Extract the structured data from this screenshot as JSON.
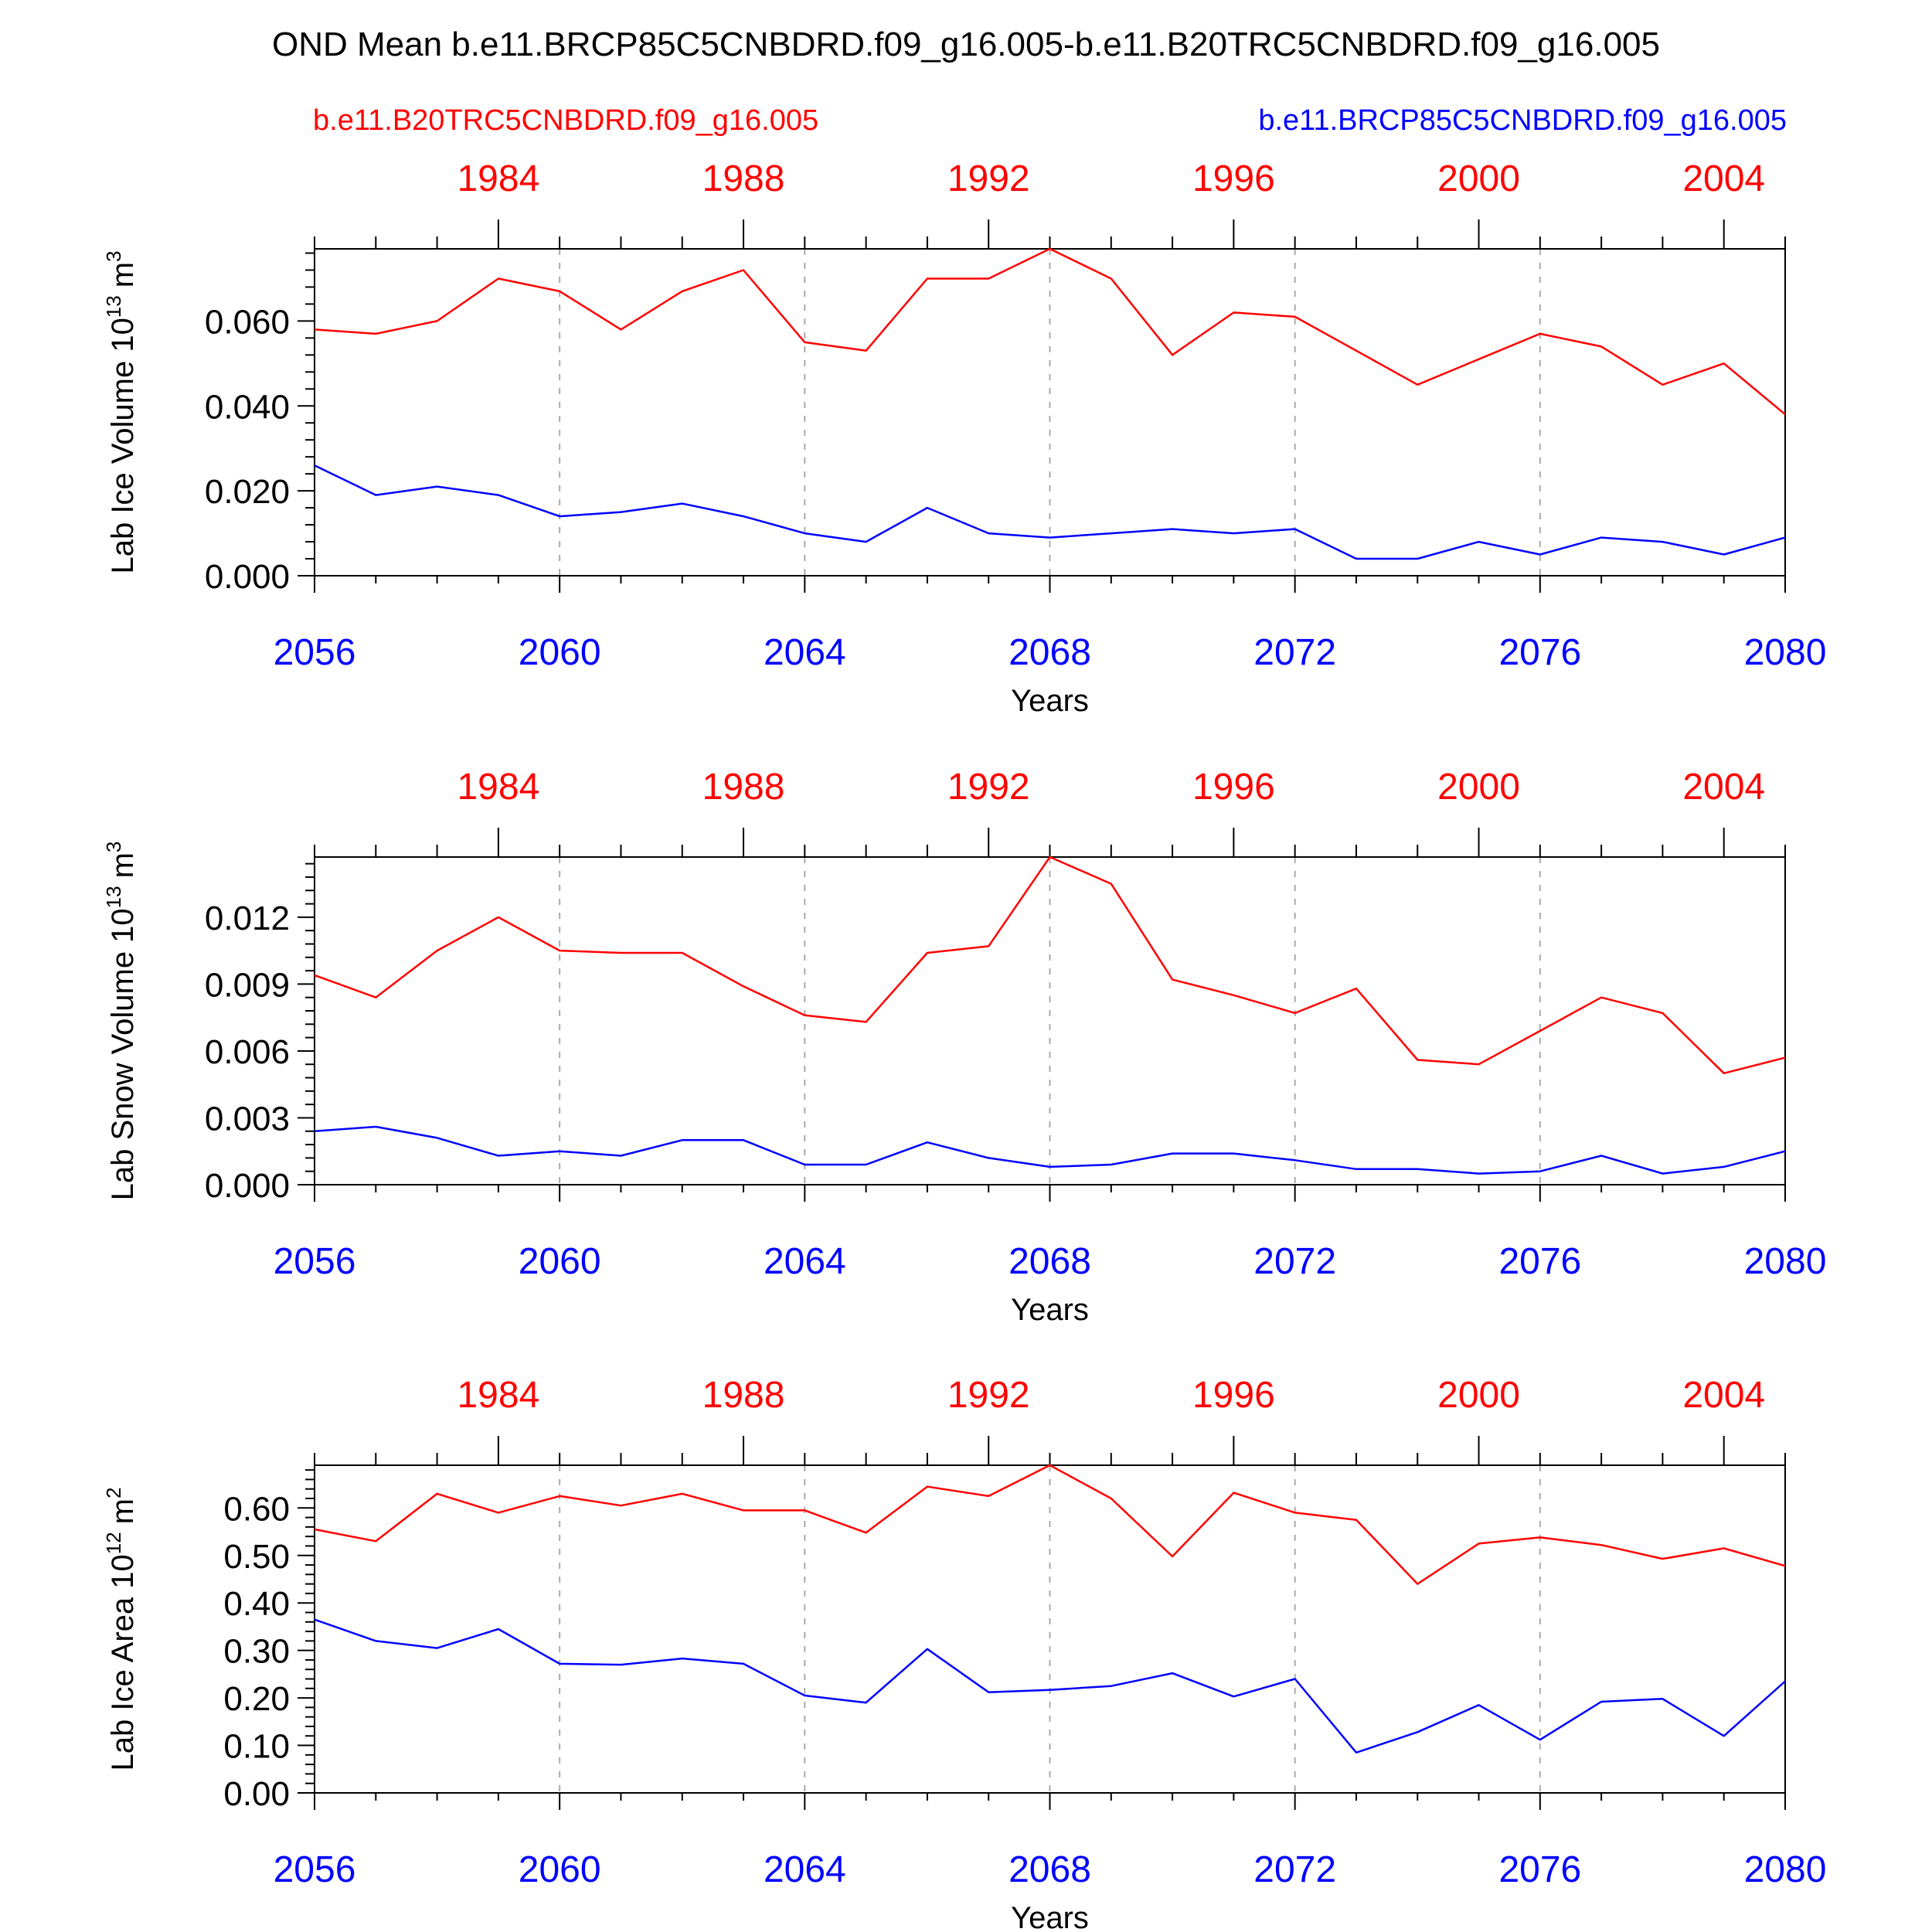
{
  "title": "OND Mean b.e11.BRCP85C5CNBDRD.f09_g16.005-b.e11.B20TRC5CNBDRD.f09_g16.005",
  "legend": {
    "red_label": "b.e11.B20TRC5CNBDRD.f09_g16.005",
    "blue_label": "b.e11.BRCP85C5CNBDRD.f09_g16.005",
    "red_color": "#ff0000",
    "blue_color": "#0000ff"
  },
  "chart_data": [
    {
      "type": "line",
      "ylabel_main": "Lab Ice Volume 10",
      "ylabel_exp": "13",
      "ylabel_unit": "m",
      "ylabel_unit_exp": "3",
      "xlabel": "Years",
      "ylim": [
        0,
        0.077
      ],
      "yticks": [
        0.0,
        0.02,
        0.04,
        0.06
      ],
      "ytick_labels": [
        "0.000",
        "0.020",
        "0.040",
        "0.060"
      ],
      "bottom_axis": {
        "range": [
          2056,
          2080
        ],
        "ticks": [
          2056,
          2060,
          2064,
          2068,
          2072,
          2076,
          2080
        ],
        "tick_labels": [
          "2056",
          "2060",
          "2064",
          "2068",
          "2072",
          "2076",
          "2080"
        ]
      },
      "top_axis": {
        "range": [
          1981,
          2005
        ],
        "ticks": [
          1984,
          1988,
          1992,
          1996,
          2000,
          2004
        ],
        "tick_labels": [
          "1984",
          "1988",
          "1992",
          "1996",
          "2000",
          "2004"
        ]
      },
      "x": [
        2056,
        2057,
        2058,
        2059,
        2060,
        2061,
        2062,
        2063,
        2064,
        2065,
        2066,
        2067,
        2068,
        2069,
        2070,
        2071,
        2072,
        2073,
        2074,
        2075,
        2076,
        2077,
        2078,
        2079,
        2080
      ],
      "series": [
        {
          "name": "b.e11.B20TRC5CNBDRD.f09_g16.005",
          "color": "red",
          "values": [
            0.058,
            0.057,
            0.06,
            0.07,
            0.067,
            0.058,
            0.067,
            0.072,
            0.055,
            0.053,
            0.07,
            0.07,
            0.077,
            0.07,
            0.052,
            0.062,
            0.061,
            0.053,
            0.045,
            0.051,
            0.057,
            0.054,
            0.045,
            0.05,
            0.038
          ]
        },
        {
          "name": "b.e11.BRCP85C5CNBDRD.f09_g16.005",
          "color": "blue",
          "values": [
            0.026,
            0.019,
            0.021,
            0.019,
            0.014,
            0.015,
            0.017,
            0.014,
            0.01,
            0.008,
            0.016,
            0.01,
            0.009,
            0.01,
            0.011,
            0.01,
            0.011,
            0.004,
            0.004,
            0.008,
            0.005,
            0.009,
            0.008,
            0.005,
            0.009
          ]
        }
      ]
    },
    {
      "type": "line",
      "ylabel_main": "Lab Snow Volume 10",
      "ylabel_exp": "13",
      "ylabel_unit": "m",
      "ylabel_unit_exp": "3",
      "xlabel": "Years",
      "ylim": [
        0,
        0.0147
      ],
      "yticks": [
        0.0,
        0.003,
        0.006,
        0.009,
        0.012
      ],
      "ytick_labels": [
        "0.000",
        "0.003",
        "0.006",
        "0.009",
        "0.012"
      ],
      "bottom_axis": {
        "range": [
          2056,
          2080
        ],
        "ticks": [
          2056,
          2060,
          2064,
          2068,
          2072,
          2076,
          2080
        ],
        "tick_labels": [
          "2056",
          "2060",
          "2064",
          "2068",
          "2072",
          "2076",
          "2080"
        ]
      },
      "top_axis": {
        "range": [
          1981,
          2005
        ],
        "ticks": [
          1984,
          1988,
          1992,
          1996,
          2000,
          2004
        ],
        "tick_labels": [
          "1984",
          "1988",
          "1992",
          "1996",
          "2000",
          "2004"
        ]
      },
      "x": [
        2056,
        2057,
        2058,
        2059,
        2060,
        2061,
        2062,
        2063,
        2064,
        2065,
        2066,
        2067,
        2068,
        2069,
        2070,
        2071,
        2072,
        2073,
        2074,
        2075,
        2076,
        2077,
        2078,
        2079,
        2080
      ],
      "series": [
        {
          "name": "b.e11.B20TRC5CNBDRD.f09_g16.005",
          "color": "red",
          "values": [
            0.0094,
            0.0084,
            0.0105,
            0.012,
            0.0105,
            0.0104,
            0.0104,
            0.0089,
            0.0076,
            0.0073,
            0.0104,
            0.0107,
            0.0147,
            0.0135,
            0.0092,
            0.0085,
            0.0077,
            0.0088,
            0.0056,
            0.0054,
            0.0069,
            0.0084,
            0.0077,
            0.005,
            0.0057
          ]
        },
        {
          "name": "b.e11.BRCP85C5CNBDRD.f09_g16.005",
          "color": "blue",
          "values": [
            0.0024,
            0.0026,
            0.0021,
            0.0013,
            0.0015,
            0.0013,
            0.002,
            0.002,
            0.0009,
            0.0009,
            0.0019,
            0.0012,
            0.0008,
            0.0009,
            0.0014,
            0.0014,
            0.0011,
            0.0007,
            0.0007,
            0.0005,
            0.0006,
            0.0013,
            0.0005,
            0.0008,
            0.0015
          ]
        }
      ]
    },
    {
      "type": "line",
      "ylabel_main": "Lab Ice Area 10",
      "ylabel_exp": "12",
      "ylabel_unit": "m",
      "ylabel_unit_exp": "2",
      "xlabel": "Years",
      "ylim": [
        0,
        0.69
      ],
      "yticks": [
        0.0,
        0.1,
        0.2,
        0.3,
        0.4,
        0.5,
        0.6
      ],
      "ytick_labels": [
        "0.00",
        "0.10",
        "0.20",
        "0.30",
        "0.40",
        "0.50",
        "0.60"
      ],
      "bottom_axis": {
        "range": [
          2056,
          2080
        ],
        "ticks": [
          2056,
          2060,
          2064,
          2068,
          2072,
          2076,
          2080
        ],
        "tick_labels": [
          "2056",
          "2060",
          "2064",
          "2068",
          "2072",
          "2076",
          "2080"
        ]
      },
      "top_axis": {
        "range": [
          1981,
          2005
        ],
        "ticks": [
          1984,
          1988,
          1992,
          1996,
          2000,
          2004
        ],
        "tick_labels": [
          "1984",
          "1988",
          "1992",
          "1996",
          "2000",
          "2004"
        ]
      },
      "x": [
        2056,
        2057,
        2058,
        2059,
        2060,
        2061,
        2062,
        2063,
        2064,
        2065,
        2066,
        2067,
        2068,
        2069,
        2070,
        2071,
        2072,
        2073,
        2074,
        2075,
        2076,
        2077,
        2078,
        2079,
        2080
      ],
      "series": [
        {
          "name": "b.e11.B20TRC5CNBDRD.f09_g16.005",
          "color": "red",
          "values": [
            0.555,
            0.53,
            0.63,
            0.59,
            0.625,
            0.605,
            0.63,
            0.595,
            0.595,
            0.548,
            0.645,
            0.625,
            0.69,
            0.62,
            0.498,
            0.632,
            0.59,
            0.575,
            0.44,
            0.525,
            0.538,
            0.522,
            0.493,
            0.515,
            0.478
          ]
        },
        {
          "name": "b.e11.BRCP85C5CNBDRD.f09_g16.005",
          "color": "blue",
          "values": [
            0.365,
            0.32,
            0.305,
            0.345,
            0.272,
            0.27,
            0.283,
            0.272,
            0.205,
            0.19,
            0.303,
            0.212,
            0.217,
            0.225,
            0.252,
            0.203,
            0.24,
            0.085,
            0.128,
            0.185,
            0.112,
            0.192,
            0.198,
            0.12,
            0.235
          ]
        }
      ]
    }
  ]
}
